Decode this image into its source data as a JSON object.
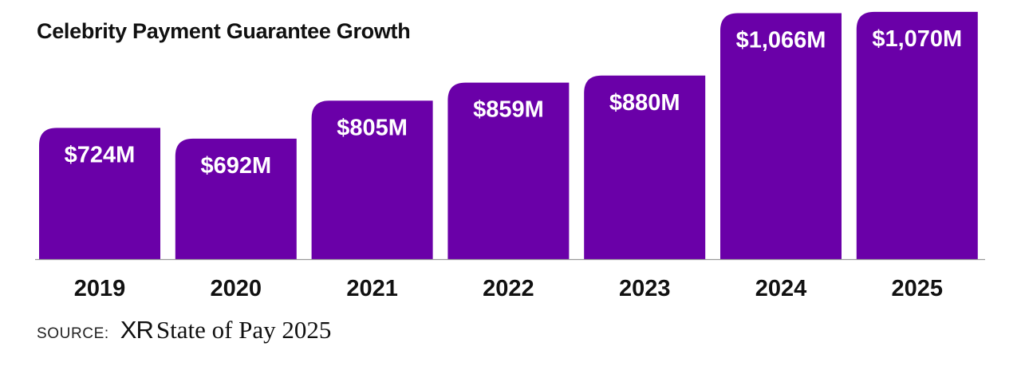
{
  "chart_data": {
    "type": "bar",
    "title": "Celebrity Payment Guarantee Growth",
    "categories": [
      "2019",
      "2020",
      "2021",
      "2022",
      "2023",
      "2024",
      "2025"
    ],
    "values": [
      724,
      692,
      805,
      859,
      880,
      1066,
      1070
    ],
    "labels": [
      "$724M",
      "$692M",
      "$805M",
      "$859M",
      "$880M",
      "$1,066M",
      "$1,070M"
    ],
    "unit": "$M",
    "xlabel": "",
    "ylabel": "",
    "grid": false,
    "bar_color": "#6a00a8"
  },
  "source": {
    "label": "SOURCE:",
    "logo": "XR",
    "name": "State of Pay 2025"
  }
}
